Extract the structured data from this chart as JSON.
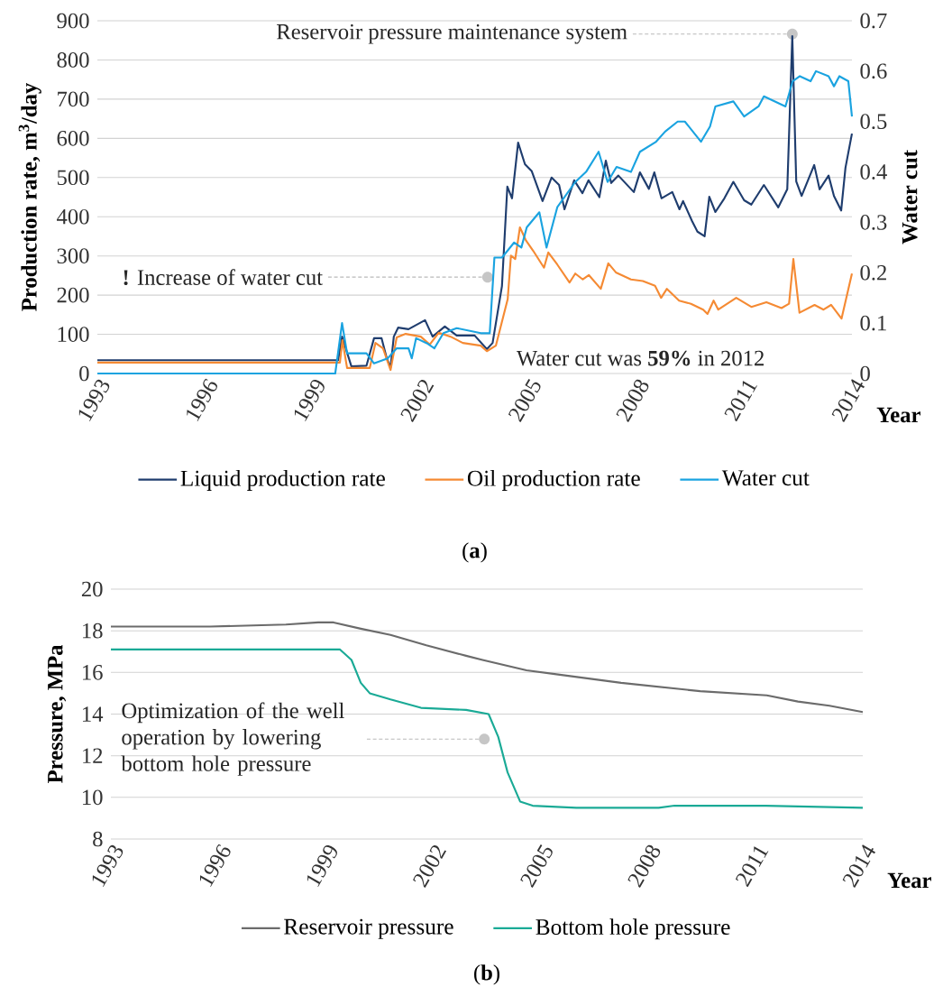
{
  "chart_data": [
    {
      "type": "line",
      "title": "(**a**)",
      "xlabel": "Year",
      "ylabel": "Production rate, m$^{3}$/day",
      "y2label": "Water cut",
      "xlim": [
        1993,
        2014
      ],
      "xticks": [
        1993,
        1996,
        1999,
        2002,
        2005,
        2008,
        2011,
        2014
      ],
      "ylim": [
        0,
        900
      ],
      "yticks": [
        0,
        100,
        200,
        300,
        400,
        500,
        600,
        700,
        800,
        900
      ],
      "y2lim": [
        0,
        0.7
      ],
      "y2ticks": [
        0,
        0.1,
        0.2,
        0.3,
        0.4,
        0.5,
        0.6,
        0.7
      ],
      "grid": "y",
      "legend": "bottom",
      "annotations": [
        {
          "text": "Reservoir pressure maintenance system",
          "x": 2012.34,
          "y": 866
        },
        {
          "text": "**!** Increase of water cut",
          "x": 2003.86,
          "y": 246
        },
        "Water cut was **59%** in 2012"
      ],
      "series": [
        {
          "name": "Liquid production rate",
          "color": "#1f3d6e",
          "x": [
            1993,
            1999.7,
            1999.81,
            2000.07,
            2000.49,
            2000.7,
            2000.91,
            2001.05,
            2001.16,
            2001.25,
            2001.37,
            2001.66,
            2002.12,
            2002.33,
            2002.67,
            2003.0,
            2003.5,
            2003.84,
            2004.0,
            2004.26,
            2004.41,
            2004.54,
            2004.71,
            2004.9,
            2005.09,
            2005.39,
            2005.64,
            2005.85,
            2006.0,
            2006.27,
            2006.5,
            2006.67,
            2006.97,
            2007.15,
            2007.3,
            2007.5,
            2007.93,
            2008.1,
            2008.35,
            2008.5,
            2008.7,
            2009.0,
            2009.2,
            2009.3,
            2009.55,
            2009.7,
            2009.9,
            2010.03,
            2010.2,
            2010.45,
            2010.7,
            2011.0,
            2011.2,
            2011.55,
            2011.95,
            2012.2,
            2012.34,
            2012.45,
            2012.6,
            2012.95,
            2013.1,
            2013.35,
            2013.5,
            2013.7,
            2013.82,
            2014.0
          ],
          "values": [
            34,
            34,
            94,
            18,
            20,
            90,
            90,
            40,
            16,
            94,
            117,
            113,
            136,
            94,
            120,
            97,
            97,
            62,
            78,
            223,
            477,
            447,
            589,
            534,
            516,
            440,
            500,
            481,
            419,
            493,
            460,
            493,
            450,
            543,
            486,
            505,
            463,
            513,
            471,
            513,
            447,
            463,
            419,
            440,
            389,
            362,
            350,
            451,
            412,
            447,
            489,
            442,
            431,
            481,
            424,
            470,
            861,
            490,
            453,
            532,
            470,
            505,
            453,
            416,
            525,
            612
          ]
        },
        {
          "name": "Oil production rate",
          "color": "#f58a33",
          "x": [
            1993,
            1999.75,
            1999.82,
            1999.95,
            2000.58,
            2000.74,
            2000.95,
            2001.16,
            2001.33,
            2001.58,
            2002.0,
            2002.25,
            2002.5,
            2002.83,
            2003.17,
            2003.67,
            2003.84,
            2004.09,
            2004.42,
            2004.51,
            2004.63,
            2004.76,
            2004.93,
            2005.13,
            2005.43,
            2005.55,
            2005.8,
            2006.14,
            2006.3,
            2006.51,
            2006.68,
            2007.01,
            2007.22,
            2007.43,
            2007.85,
            2008.18,
            2008.52,
            2008.69,
            2008.85,
            2009.19,
            2009.52,
            2009.86,
            2009.98,
            2010.15,
            2010.28,
            2010.78,
            2011.2,
            2011.62,
            2012.04,
            2012.25,
            2012.37,
            2012.54,
            2012.96,
            2013.21,
            2013.42,
            2013.71,
            2014.0
          ],
          "values": [
            28,
            28,
            85,
            14,
            14,
            78,
            64,
            9,
            92,
            101,
            94,
            74,
            104,
            94,
            78,
            71,
            57,
            71,
            190,
            301,
            292,
            373,
            339,
            313,
            270,
            309,
            278,
            232,
            255,
            240,
            251,
            216,
            281,
            258,
            240,
            236,
            224,
            193,
            216,
            186,
            178,
            163,
            152,
            186,
            163,
            193,
            170,
            182,
            167,
            178,
            292,
            155,
            175,
            163,
            175,
            140,
            255
          ]
        },
        {
          "name": "Water cut",
          "color": "#1aa3e0",
          "axis": "y2",
          "x": [
            1993,
            1999.62,
            1999.81,
            1999.95,
            2000.49,
            2000.7,
            2001.08,
            2001.33,
            2001.66,
            2001.75,
            2001.87,
            2002.17,
            2002.38,
            2002.63,
            2003.0,
            2003.67,
            2003.92,
            2004.05,
            2004.26,
            2004.6,
            2004.8,
            2004.95,
            2005.3,
            2005.5,
            2005.8,
            2006.3,
            2006.6,
            2006.95,
            2007.2,
            2007.45,
            2007.85,
            2008.1,
            2008.55,
            2008.8,
            2009.15,
            2009.35,
            2009.8,
            2010.05,
            2010.2,
            2010.7,
            2011.0,
            2011.4,
            2011.55,
            2012.15,
            2012.35,
            2012.55,
            2012.85,
            2013.0,
            2013.35,
            2013.5,
            2013.65,
            2013.9,
            2014.0
          ],
          "values": [
            0,
            0,
            0.1,
            0.04,
            0.04,
            0.02,
            0.03,
            0.05,
            0.05,
            0.03,
            0.07,
            0.06,
            0.05,
            0.08,
            0.09,
            0.08,
            0.08,
            0.23,
            0.23,
            0.26,
            0.25,
            0.29,
            0.32,
            0.25,
            0.33,
            0.38,
            0.4,
            0.44,
            0.38,
            0.41,
            0.4,
            0.44,
            0.46,
            0.48,
            0.5,
            0.5,
            0.46,
            0.49,
            0.53,
            0.54,
            0.51,
            0.53,
            0.55,
            0.53,
            0.58,
            0.59,
            0.58,
            0.6,
            0.59,
            0.57,
            0.59,
            0.58,
            0.51
          ]
        }
      ]
    },
    {
      "type": "line",
      "title": "(**b**)",
      "xlabel": "Year",
      "ylabel": "Pressure, MPa",
      "xlim": [
        1993,
        2014
      ],
      "xticks": [
        1993,
        1996,
        1999,
        2002,
        2005,
        2008,
        2011,
        2014
      ],
      "ylim": [
        8,
        20
      ],
      "yticks": [
        8,
        10,
        12,
        14,
        16,
        18,
        20
      ],
      "grid": "y",
      "legend": "bottom",
      "annotations": [
        {
          "text": "Optimization of the well operation by lowering bottom hole pressure",
          "x": 2003.43,
          "y": 12.8
        }
      ],
      "series": [
        {
          "name": "Reservoir pressure",
          "color": "#6b6b6b",
          "x": [
            1993,
            1995.77,
            1997.89,
            1998.79,
            1999.22,
            1999.98,
            2000.81,
            2001.81,
            2002.92,
            2003.38,
            2004.61,
            2005.49,
            2007.25,
            2009.46,
            2011.32,
            2012.19,
            2013.07,
            2014.0
          ],
          "values": [
            18.2,
            18.2,
            18.3,
            18.4,
            18.4,
            18.1,
            17.8,
            17.3,
            16.8,
            16.6,
            16.1,
            15.9,
            15.5,
            15.1,
            14.9,
            14.6,
            14.4,
            14.1
          ]
        },
        {
          "name": "Bottom hole pressure",
          "color": "#1aaa96",
          "x": [
            1993,
            1999.4,
            1999.72,
            1999.98,
            2000.23,
            2000.81,
            2001.66,
            2002.92,
            2003.55,
            2003.82,
            2004.08,
            2004.43,
            2004.78,
            2006.0,
            2008.3,
            2008.74,
            2011.3,
            2014.0
          ],
          "values": [
            17.1,
            17.1,
            16.6,
            15.5,
            15.0,
            14.7,
            14.3,
            14.2,
            14.0,
            12.9,
            11.2,
            9.8,
            9.6,
            9.5,
            9.5,
            9.6,
            9.6,
            9.5
          ]
        }
      ]
    }
  ]
}
